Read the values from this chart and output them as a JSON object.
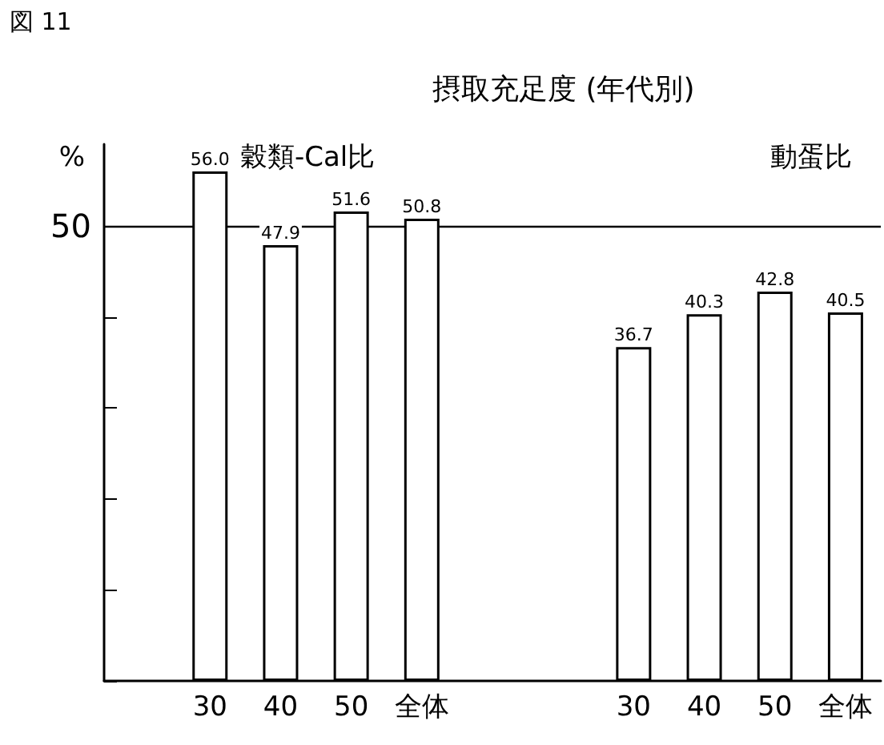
{
  "chart_data": {
    "type": "bar",
    "title": "摂取充足度 (年代別)",
    "ylabel": "%",
    "annotations": [
      "図 11",
      "穀類-Cal比",
      "動蛋比"
    ],
    "categories": [
      null,
      "30",
      "40",
      "50",
      "全体",
      null,
      null,
      "30",
      "40",
      "50",
      "全体"
    ],
    "series": [
      {
        "color": "#ffffff",
        "values": [
          null,
          56.0,
          47.9,
          51.6,
          50.8,
          null,
          null,
          36.7,
          40.3,
          42.8,
          40.5
        ],
        "value_labels": [
          null,
          "56.0",
          "47.9",
          "51.6",
          "50.8",
          null,
          null,
          "36.7",
          "40.3",
          "42.8",
          "40.5"
        ]
      }
    ],
    "ylim": [
      0,
      59
    ],
    "yticks": [
      {
        "value": 0,
        "label": null
      },
      {
        "value": 10,
        "label": null
      },
      {
        "value": 20,
        "label": null
      },
      {
        "value": 30,
        "label": null
      },
      {
        "value": 40,
        "label": null
      },
      50
    ],
    "ref_lines": [
      {
        "axis": "y",
        "value": 50,
        "color": "#000000"
      }
    ],
    "grid": false
  }
}
